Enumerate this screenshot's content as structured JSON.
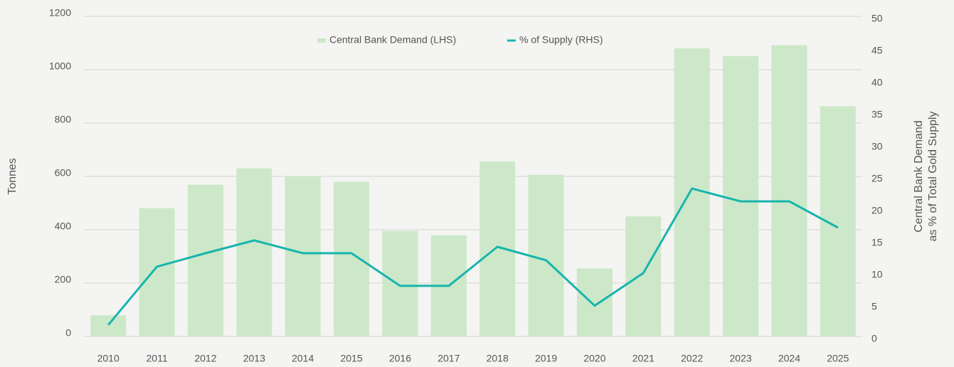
{
  "chart_data": {
    "type": "bar_line",
    "ylabel": "Tonnes",
    "y2label": [
      "Central Bank Demand",
      "as % of Total Gold Supply"
    ],
    "categories": [
      "2010",
      "2011",
      "2012",
      "2013",
      "2014",
      "2015",
      "2016",
      "2017",
      "2018",
      "2019",
      "2020",
      "2021",
      "2022",
      "2023",
      "2024",
      "2025"
    ],
    "series": [
      {
        "name": "Central Bank Demand (LHS)",
        "type": "bar",
        "color": "#cce8c9",
        "values": [
          79,
          481,
          569,
          630,
          601,
          580,
          395,
          379,
          656,
          606,
          255,
          450,
          1080,
          1051,
          1092,
          863
        ]
      },
      {
        "name": "% of Supply (RHS)",
        "type": "line",
        "axis": "y2",
        "color": "#17b5ad",
        "values": [
          1.8,
          10.9,
          13,
          15,
          13,
          13,
          7.9,
          7.9,
          14,
          11.9,
          4.8,
          9.9,
          23.1,
          21.1,
          21.1,
          17
        ]
      }
    ],
    "ylim": [
      0,
      1200
    ],
    "yticks": [
      0,
      200,
      400,
      600,
      800,
      1000,
      1200
    ],
    "y2lim": [
      0,
      50
    ],
    "y2ticks": [
      0,
      5,
      10,
      15,
      20,
      25,
      30,
      35,
      40,
      45,
      50
    ],
    "grid": true,
    "legend": "top"
  }
}
